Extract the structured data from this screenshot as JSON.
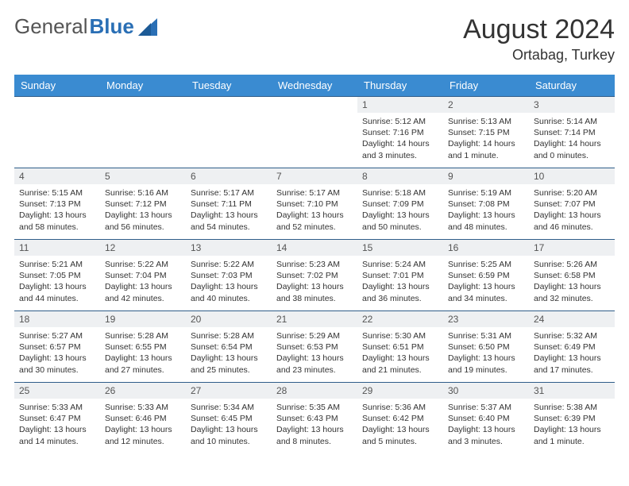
{
  "logo": {
    "text1": "General",
    "text2": "Blue"
  },
  "title": "August 2024",
  "location": "Ortabag, Turkey",
  "colors": {
    "header_bg": "#3a8bd1",
    "header_text": "#ffffff",
    "daynum_bg": "#eef0f2",
    "cell_border": "#2f5d8a",
    "logo_blue": "#2a6fb5",
    "text": "#333333"
  },
  "daynames": [
    "Sunday",
    "Monday",
    "Tuesday",
    "Wednesday",
    "Thursday",
    "Friday",
    "Saturday"
  ],
  "weeks": [
    [
      null,
      null,
      null,
      null,
      {
        "n": "1",
        "sr": "Sunrise: 5:12 AM",
        "ss": "Sunset: 7:16 PM",
        "dl": "Daylight: 14 hours and 3 minutes."
      },
      {
        "n": "2",
        "sr": "Sunrise: 5:13 AM",
        "ss": "Sunset: 7:15 PM",
        "dl": "Daylight: 14 hours and 1 minute."
      },
      {
        "n": "3",
        "sr": "Sunrise: 5:14 AM",
        "ss": "Sunset: 7:14 PM",
        "dl": "Daylight: 14 hours and 0 minutes."
      }
    ],
    [
      {
        "n": "4",
        "sr": "Sunrise: 5:15 AM",
        "ss": "Sunset: 7:13 PM",
        "dl": "Daylight: 13 hours and 58 minutes."
      },
      {
        "n": "5",
        "sr": "Sunrise: 5:16 AM",
        "ss": "Sunset: 7:12 PM",
        "dl": "Daylight: 13 hours and 56 minutes."
      },
      {
        "n": "6",
        "sr": "Sunrise: 5:17 AM",
        "ss": "Sunset: 7:11 PM",
        "dl": "Daylight: 13 hours and 54 minutes."
      },
      {
        "n": "7",
        "sr": "Sunrise: 5:17 AM",
        "ss": "Sunset: 7:10 PM",
        "dl": "Daylight: 13 hours and 52 minutes."
      },
      {
        "n": "8",
        "sr": "Sunrise: 5:18 AM",
        "ss": "Sunset: 7:09 PM",
        "dl": "Daylight: 13 hours and 50 minutes."
      },
      {
        "n": "9",
        "sr": "Sunrise: 5:19 AM",
        "ss": "Sunset: 7:08 PM",
        "dl": "Daylight: 13 hours and 48 minutes."
      },
      {
        "n": "10",
        "sr": "Sunrise: 5:20 AM",
        "ss": "Sunset: 7:07 PM",
        "dl": "Daylight: 13 hours and 46 minutes."
      }
    ],
    [
      {
        "n": "11",
        "sr": "Sunrise: 5:21 AM",
        "ss": "Sunset: 7:05 PM",
        "dl": "Daylight: 13 hours and 44 minutes."
      },
      {
        "n": "12",
        "sr": "Sunrise: 5:22 AM",
        "ss": "Sunset: 7:04 PM",
        "dl": "Daylight: 13 hours and 42 minutes."
      },
      {
        "n": "13",
        "sr": "Sunrise: 5:22 AM",
        "ss": "Sunset: 7:03 PM",
        "dl": "Daylight: 13 hours and 40 minutes."
      },
      {
        "n": "14",
        "sr": "Sunrise: 5:23 AM",
        "ss": "Sunset: 7:02 PM",
        "dl": "Daylight: 13 hours and 38 minutes."
      },
      {
        "n": "15",
        "sr": "Sunrise: 5:24 AM",
        "ss": "Sunset: 7:01 PM",
        "dl": "Daylight: 13 hours and 36 minutes."
      },
      {
        "n": "16",
        "sr": "Sunrise: 5:25 AM",
        "ss": "Sunset: 6:59 PM",
        "dl": "Daylight: 13 hours and 34 minutes."
      },
      {
        "n": "17",
        "sr": "Sunrise: 5:26 AM",
        "ss": "Sunset: 6:58 PM",
        "dl": "Daylight: 13 hours and 32 minutes."
      }
    ],
    [
      {
        "n": "18",
        "sr": "Sunrise: 5:27 AM",
        "ss": "Sunset: 6:57 PM",
        "dl": "Daylight: 13 hours and 30 minutes."
      },
      {
        "n": "19",
        "sr": "Sunrise: 5:28 AM",
        "ss": "Sunset: 6:55 PM",
        "dl": "Daylight: 13 hours and 27 minutes."
      },
      {
        "n": "20",
        "sr": "Sunrise: 5:28 AM",
        "ss": "Sunset: 6:54 PM",
        "dl": "Daylight: 13 hours and 25 minutes."
      },
      {
        "n": "21",
        "sr": "Sunrise: 5:29 AM",
        "ss": "Sunset: 6:53 PM",
        "dl": "Daylight: 13 hours and 23 minutes."
      },
      {
        "n": "22",
        "sr": "Sunrise: 5:30 AM",
        "ss": "Sunset: 6:51 PM",
        "dl": "Daylight: 13 hours and 21 minutes."
      },
      {
        "n": "23",
        "sr": "Sunrise: 5:31 AM",
        "ss": "Sunset: 6:50 PM",
        "dl": "Daylight: 13 hours and 19 minutes."
      },
      {
        "n": "24",
        "sr": "Sunrise: 5:32 AM",
        "ss": "Sunset: 6:49 PM",
        "dl": "Daylight: 13 hours and 17 minutes."
      }
    ],
    [
      {
        "n": "25",
        "sr": "Sunrise: 5:33 AM",
        "ss": "Sunset: 6:47 PM",
        "dl": "Daylight: 13 hours and 14 minutes."
      },
      {
        "n": "26",
        "sr": "Sunrise: 5:33 AM",
        "ss": "Sunset: 6:46 PM",
        "dl": "Daylight: 13 hours and 12 minutes."
      },
      {
        "n": "27",
        "sr": "Sunrise: 5:34 AM",
        "ss": "Sunset: 6:45 PM",
        "dl": "Daylight: 13 hours and 10 minutes."
      },
      {
        "n": "28",
        "sr": "Sunrise: 5:35 AM",
        "ss": "Sunset: 6:43 PM",
        "dl": "Daylight: 13 hours and 8 minutes."
      },
      {
        "n": "29",
        "sr": "Sunrise: 5:36 AM",
        "ss": "Sunset: 6:42 PM",
        "dl": "Daylight: 13 hours and 5 minutes."
      },
      {
        "n": "30",
        "sr": "Sunrise: 5:37 AM",
        "ss": "Sunset: 6:40 PM",
        "dl": "Daylight: 13 hours and 3 minutes."
      },
      {
        "n": "31",
        "sr": "Sunrise: 5:38 AM",
        "ss": "Sunset: 6:39 PM",
        "dl": "Daylight: 13 hours and 1 minute."
      }
    ]
  ]
}
